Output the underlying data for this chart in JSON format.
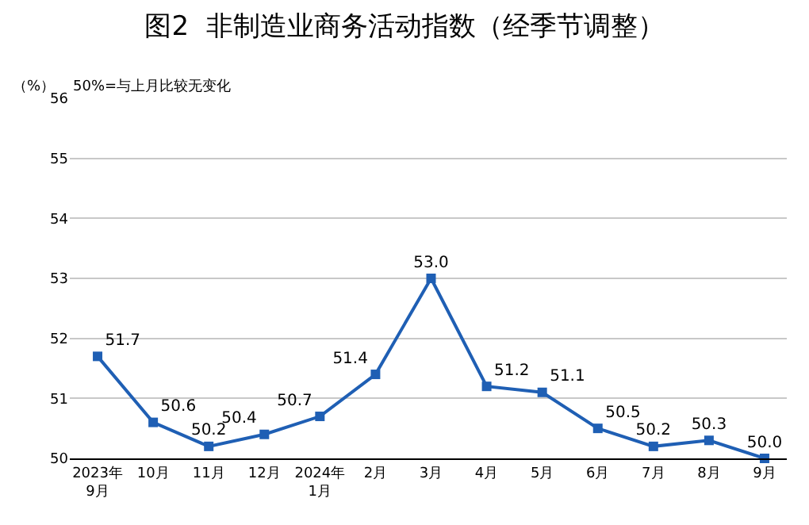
{
  "chart_data": {
    "type": "line",
    "title": "图2  非制造业商务活动指数（经季节调整）",
    "ylabel": "（%）",
    "annotations": [
      "50%=与上月比较无变化"
    ],
    "categories": [
      "2023年\n9月",
      "10月",
      "11月",
      "12月",
      "2024年\n1月",
      "2月",
      "3月",
      "4月",
      "5月",
      "6月",
      "7月",
      "8月",
      "9月"
    ],
    "series": [
      {
        "color": "#1f5fb4",
        "values": [
          51.7,
          50.6,
          50.2,
          50.4,
          50.7,
          51.4,
          53.0,
          51.2,
          51.1,
          50.5,
          50.2,
          50.3,
          50.0
        ],
        "value_labels": [
          "51.7",
          "50.6",
          "50.2",
          "50.4",
          "50.7",
          "51.4",
          "53.0",
          "51.2",
          "51.1",
          "50.5",
          "50.2",
          "50.3",
          "50.0"
        ]
      }
    ],
    "ylim": [
      50,
      56
    ],
    "yticks": [
      50,
      51,
      52,
      53,
      54,
      55,
      56
    ],
    "grid": "y",
    "marker": "square",
    "line_style": "solid"
  }
}
